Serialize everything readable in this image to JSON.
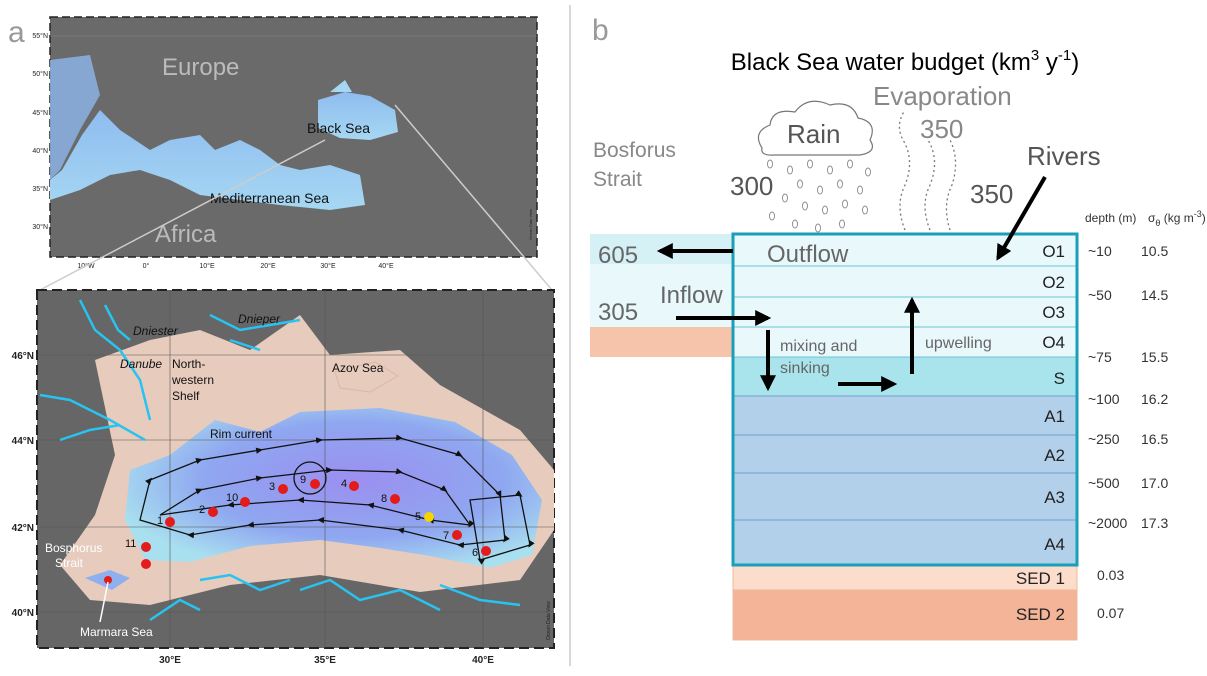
{
  "panel_a": {
    "letter": "a",
    "overview_map": {
      "lat_ticks": [
        "55°N",
        "50°N",
        "45°N",
        "40°N",
        "35°N",
        "30°N"
      ],
      "lon_ticks": [
        "10°W",
        "0°",
        "10°E",
        "20°E",
        "30°E",
        "40°E"
      ],
      "labels": {
        "europe": "Europe",
        "africa": "Africa",
        "black_sea": "Black Sea",
        "mediterranean": "Mediterranean Sea"
      },
      "credit": "Ocean Data View"
    },
    "detail_map": {
      "lat_ticks": [
        "46°N",
        "44°N",
        "42°N",
        "40°N"
      ],
      "lon_ticks": [
        "30°E",
        "35°E",
        "40°E"
      ],
      "labels": {
        "dniester": "Dniester",
        "dnieper": "Dnieper",
        "danube": "Danube",
        "shelf": [
          "North-",
          "western",
          "Shelf"
        ],
        "azov": "Azov Sea",
        "rim_current": "Rim current",
        "bosphorus": [
          "Bosphorus",
          "Strait"
        ],
        "marmara": "Marmara Sea"
      },
      "stations": [
        "1",
        "2",
        "3",
        "4",
        "5",
        "6",
        "7",
        "8",
        "9",
        "10",
        "11"
      ],
      "credit": "Ocean Data View"
    }
  },
  "panel_b": {
    "letter": "b",
    "title": [
      "Black Sea water budget (km",
      "3",
      " y",
      "-1",
      ")"
    ],
    "evaporation": {
      "label": "Evaporation",
      "value": "350"
    },
    "rain": {
      "label": "Rain",
      "value": "300"
    },
    "rivers": {
      "label": "Rivers",
      "value": "350"
    },
    "strait": [
      "Bosforus",
      "Strait"
    ],
    "outflow": {
      "label": "Outflow",
      "value": "605"
    },
    "inflow": {
      "label": "Inflow",
      "value": "305"
    },
    "mixing": [
      "mixing and",
      "sinking"
    ],
    "upwelling": "upwelling",
    "depth_header": "depth (m)",
    "sigma_header": [
      "σ",
      "θ",
      " (kg m",
      "-3",
      ")"
    ],
    "layers": [
      "O1",
      "O2",
      "O3",
      "O4",
      "S",
      "A1",
      "A2",
      "A3",
      "A4"
    ],
    "sediments": [
      {
        "name": "SED 1",
        "value": "0.03"
      },
      {
        "name": "SED 2",
        "value": "0.07"
      }
    ],
    "depths": [
      {
        "depth": "~10",
        "sigma": "10.5"
      },
      {
        "depth": "~50",
        "sigma": "14.5"
      },
      {
        "depth": "~75",
        "sigma": "15.5"
      },
      {
        "depth": "~100",
        "sigma": "16.2"
      },
      {
        "depth": "~250",
        "sigma": "16.5"
      },
      {
        "depth": "~500",
        "sigma": "17.0"
      },
      {
        "depth": "~2000",
        "sigma": "17.3"
      }
    ]
  }
}
